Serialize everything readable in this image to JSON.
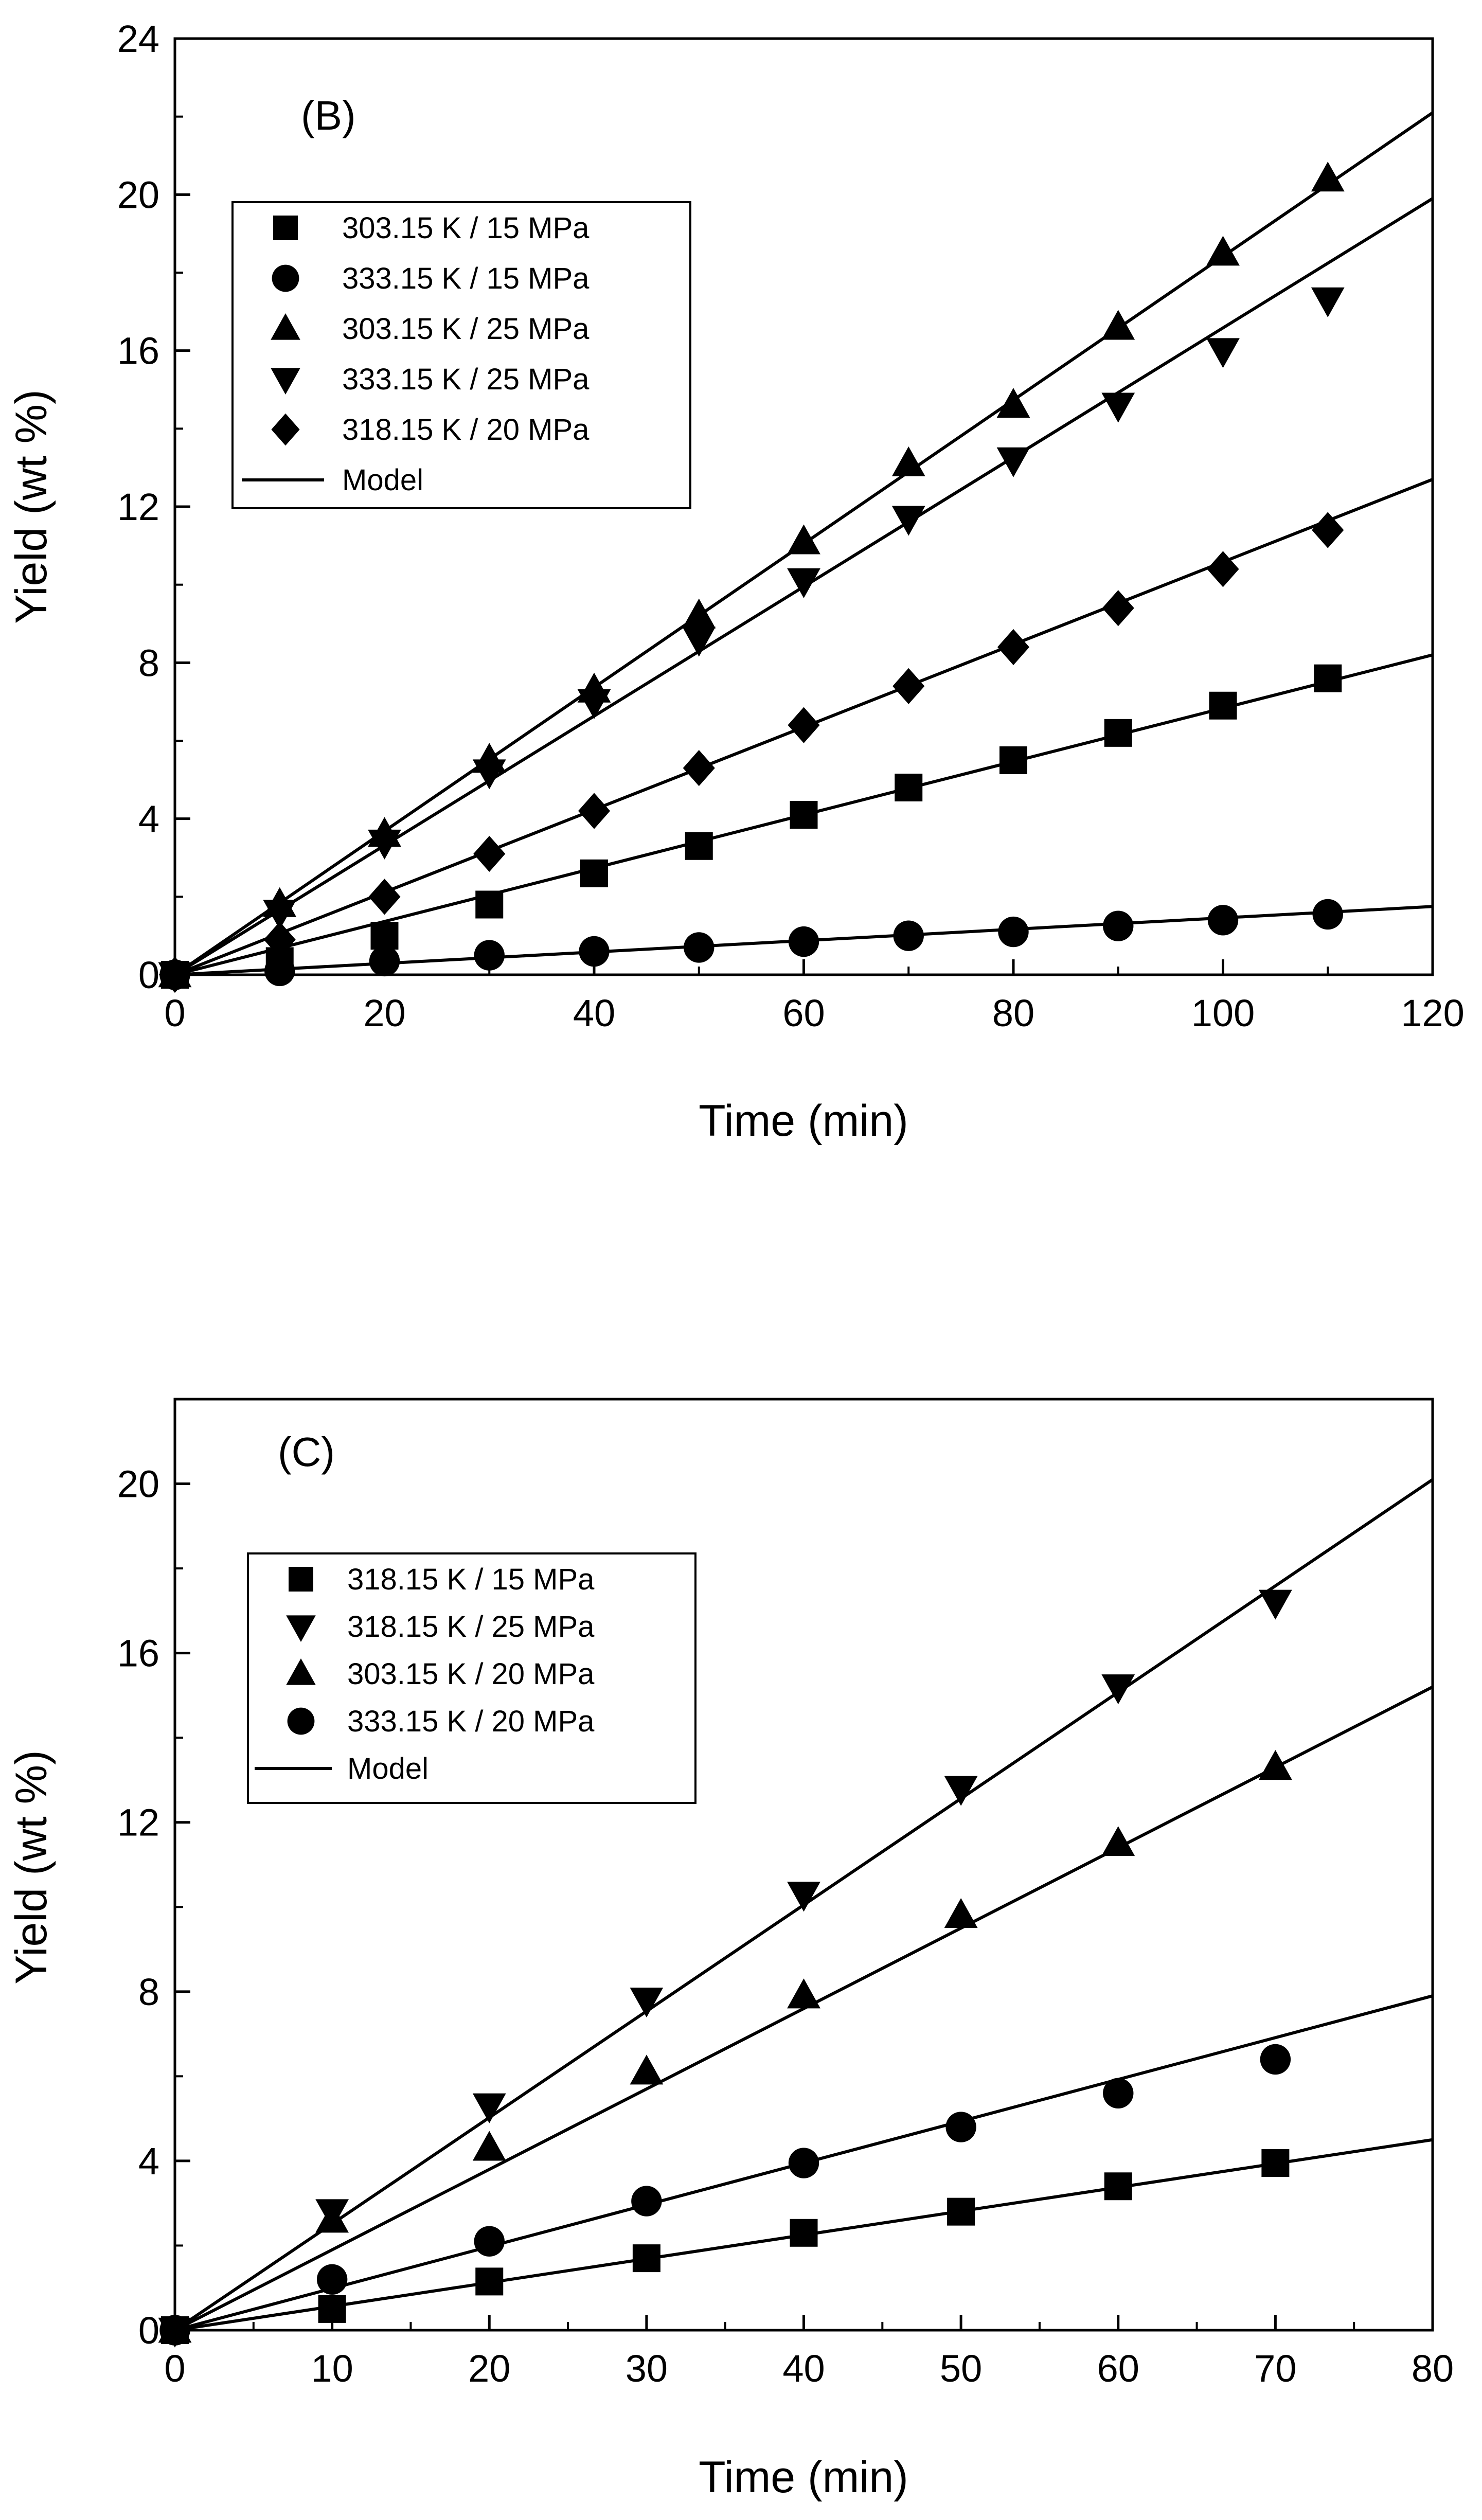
{
  "chart_data": [
    {
      "type": "scatter",
      "panel_label": "(B)",
      "xlabel": "Time (min)",
      "ylabel": "Yield (wt %)",
      "xlim": [
        0,
        120
      ],
      "ylim": [
        0,
        24
      ],
      "xticks": [
        0,
        20,
        40,
        60,
        80,
        100,
        120
      ],
      "yticks": [
        0,
        4,
        8,
        12,
        16,
        20,
        24
      ],
      "x": [
        0,
        10,
        20,
        30,
        40,
        50,
        60,
        70,
        80,
        90,
        100,
        110
      ],
      "legend_position": "top-left",
      "series": [
        {
          "name": "303.15 K / 15 MPa",
          "marker": "square",
          "values": [
            0,
            0.35,
            1.0,
            1.8,
            2.6,
            3.3,
            4.1,
            4.8,
            5.5,
            6.2,
            6.9,
            7.6
          ],
          "model_end": 8.2
        },
        {
          "name": "333.15 K / 15 MPa",
          "marker": "circle",
          "values": [
            0,
            0.1,
            0.35,
            0.5,
            0.6,
            0.7,
            0.85,
            1.0,
            1.1,
            1.25,
            1.4,
            1.55
          ],
          "model_end": 1.75
        },
        {
          "name": "303.15 K / 25 MPa",
          "marker": "triangle-up",
          "values": [
            0,
            1.8,
            3.6,
            5.5,
            7.3,
            9.2,
            11.1,
            13.1,
            14.6,
            16.6,
            18.5,
            20.4
          ],
          "model_end": 22.1
        },
        {
          "name": "333.15 K / 25 MPa",
          "marker": "triangle-down",
          "values": [
            0,
            1.6,
            3.4,
            5.2,
            7.0,
            8.6,
            10.1,
            11.7,
            13.2,
            14.6,
            16.0,
            17.3
          ],
          "model_end": 19.9
        },
        {
          "name": "318.15 K / 20 MPa",
          "marker": "diamond",
          "values": [
            0,
            0.9,
            2.0,
            3.1,
            4.2,
            5.3,
            6.4,
            7.4,
            8.4,
            9.4,
            10.4,
            11.4
          ],
          "model_end": 12.7
        }
      ],
      "model_label": "Model"
    },
    {
      "type": "scatter",
      "panel_label": "(C)",
      "xlabel": "Time (min)",
      "ylabel": "Yield (wt %)",
      "xlim": [
        0,
        80
      ],
      "ylim": [
        0,
        22
      ],
      "xticks": [
        0,
        10,
        20,
        30,
        40,
        50,
        60,
        70,
        80
      ],
      "yticks": [
        0,
        4,
        8,
        12,
        16,
        20
      ],
      "x": [
        0,
        10,
        20,
        30,
        40,
        50,
        60,
        70
      ],
      "legend_position": "top-left",
      "series": [
        {
          "name": "318.15 K / 15 MPa",
          "marker": "square",
          "values": [
            0,
            0.5,
            1.15,
            1.7,
            2.3,
            2.8,
            3.4,
            3.95
          ],
          "model_end": 4.5
        },
        {
          "name": "318.15 K / 25 MPa",
          "marker": "triangle-down",
          "values": [
            0,
            2.8,
            5.3,
            7.8,
            10.3,
            12.8,
            15.2,
            17.2
          ],
          "model_end": 20.1
        },
        {
          "name": "303.15 K / 20 MPa",
          "marker": "triangle-up",
          "values": [
            0,
            2.6,
            4.3,
            6.1,
            7.9,
            9.8,
            11.5,
            13.3
          ],
          "model_end": 15.2
        },
        {
          "name": "333.15 K / 20 MPa",
          "marker": "circle",
          "values": [
            0,
            1.2,
            2.1,
            3.05,
            3.95,
            4.8,
            5.6,
            6.4
          ],
          "model_end": 7.9
        }
      ],
      "model_label": "Model"
    }
  ]
}
